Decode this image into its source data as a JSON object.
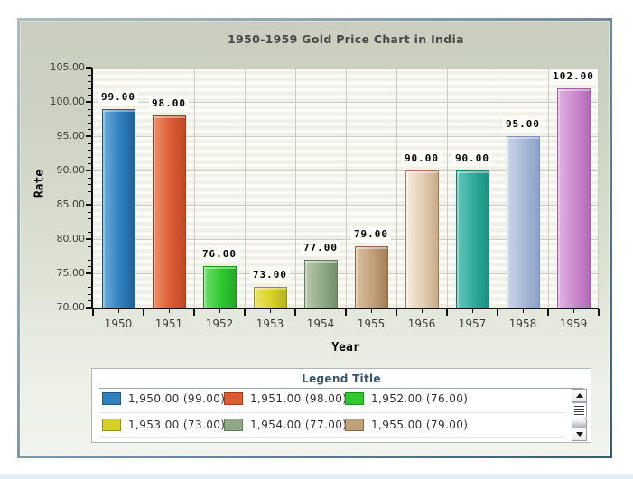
{
  "chart_data": {
    "type": "bar",
    "title": "1950-1959 Gold Price Chart in India",
    "xlabel": "Year",
    "ylabel": "Rate",
    "ylim": [
      70,
      105
    ],
    "y_major_step": 5,
    "y_minor_step": 1,
    "grid": true,
    "y_tick_labels": [
      "70.00",
      "75.00",
      "80.00",
      "85.00",
      "90.00",
      "95.00",
      "100.00",
      "105.00"
    ],
    "categories": [
      "1950",
      "1951",
      "1952",
      "1953",
      "1954",
      "1955",
      "1956",
      "1957",
      "1958",
      "1959"
    ],
    "values": [
      99,
      98,
      76,
      73,
      77,
      79,
      90,
      90,
      95,
      102
    ],
    "bar_labels": [
      "99.00",
      "98.00",
      "76.00",
      "73.00",
      "77.00",
      "79.00",
      "90.00",
      "90.00",
      "95.00",
      "102.00"
    ],
    "bar_colors": [
      {
        "light": "#6aaede",
        "base": "#2f80bd",
        "dark": "#1f6298",
        "border": "#1c5a8c"
      },
      {
        "light": "#ef9068",
        "base": "#dc5b33",
        "dark": "#bf4a27",
        "border": "#a33d1f"
      },
      {
        "light": "#6ee06e",
        "base": "#2fc82f",
        "dark": "#26a826",
        "border": "#1e921e"
      },
      {
        "light": "#eae668",
        "base": "#d6d026",
        "dark": "#b6b01e",
        "border": "#97921b"
      },
      {
        "light": "#b8caae",
        "base": "#90aa88",
        "dark": "#76906e",
        "border": "#60795a"
      },
      {
        "light": "#dcc2a0",
        "base": "#c0a078",
        "dark": "#a17e56",
        "border": "#8a684a"
      },
      {
        "light": "#f6ecdc",
        "base": "#e2ccb0",
        "dark": "#c9aa88",
        "border": "#9c7c5e"
      },
      {
        "light": "#66c8ba",
        "base": "#2cab9b",
        "dark": "#1e8d7f",
        "border": "#187b6f"
      },
      {
        "light": "#c9d4e8",
        "base": "#a6b8d7",
        "dark": "#8ca1c7",
        "border": "#7c92b8"
      },
      {
        "light": "#e2b2e4",
        "base": "#cb88ce",
        "dark": "#b26cb6",
        "border": "#a060a4"
      }
    ],
    "legend_position": "bottom"
  },
  "legend": {
    "title": "Legend Title",
    "entries": [
      {
        "label": "1,950.00 (99.00)",
        "color": "#2f80bd",
        "border": "#1c5a8c"
      },
      {
        "label": "1,951.00 (98.00)",
        "color": "#dc5b33",
        "border": "#a33d1f"
      },
      {
        "label": "1,952.00 (76.00)",
        "color": "#2fc82f",
        "border": "#1e921e"
      },
      {
        "label": "1,953.00 (73.00)",
        "color": "#d6d026",
        "border": "#97921b"
      },
      {
        "label": "1,954.00 (77.00)",
        "color": "#90aa88",
        "border": "#60795a"
      },
      {
        "label": "1,955.00 (79.00)",
        "color": "#c0a078",
        "border": "#8a684a"
      }
    ]
  },
  "colors": {
    "panel_background_top": "#c9cebf",
    "panel_background_bottom": "#f1f3ec",
    "panel_frame_dark": "#3c5a68",
    "plot_background": "#f6f6f0",
    "gridline": "#ccccc4",
    "title_text": "#4a4a4a",
    "legend_title_text": "#3a546c",
    "bottom_strip": "#e2ecf4"
  }
}
